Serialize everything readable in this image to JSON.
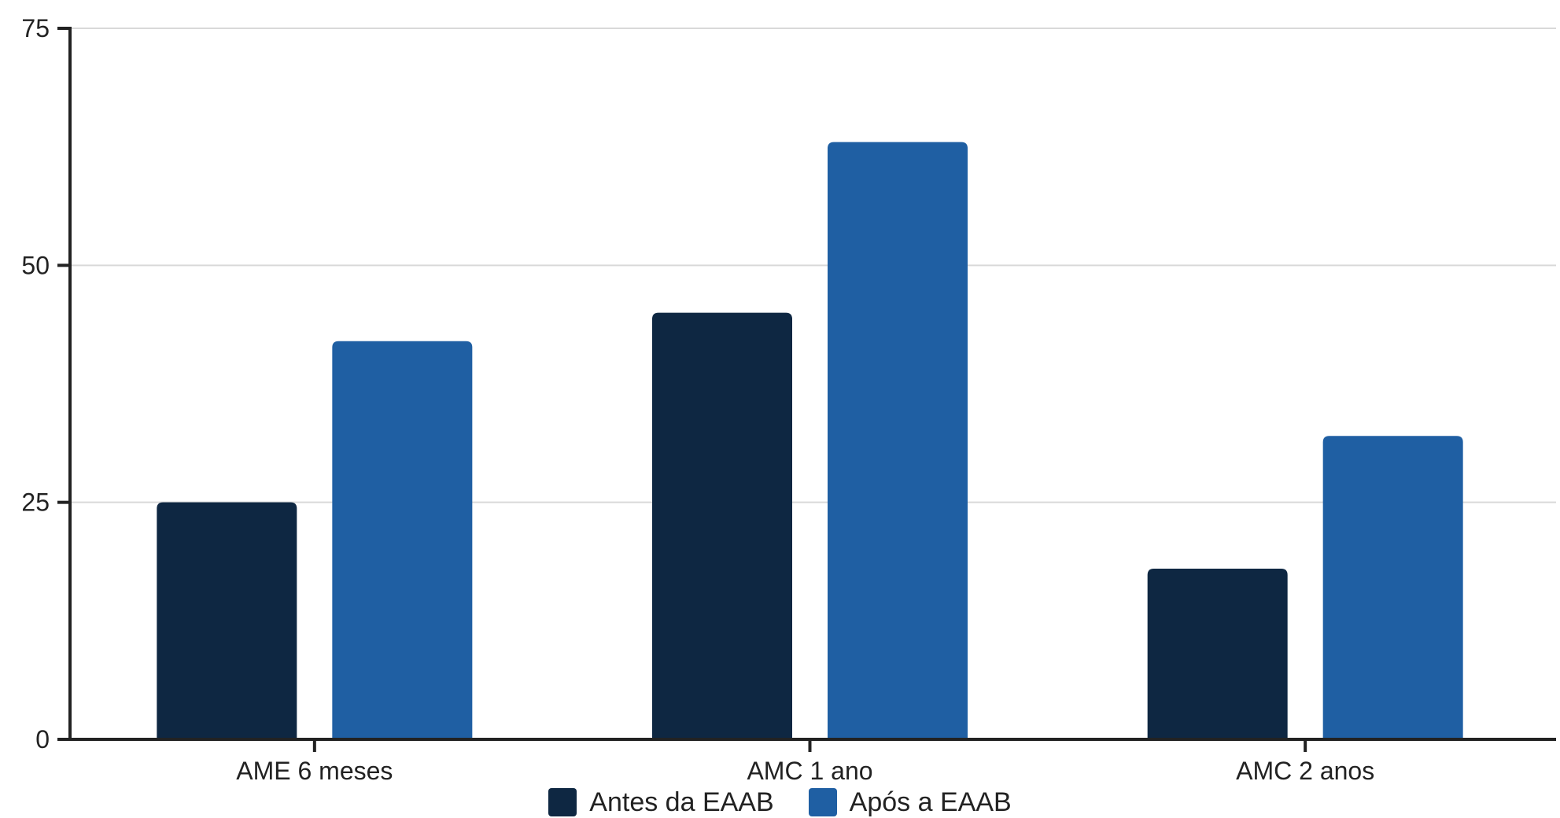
{
  "chart_data": {
    "type": "bar",
    "categories": [
      "AME 6 meses",
      "AMC 1 ano",
      "AMC 2 anos"
    ],
    "series": [
      {
        "name": "Antes da EAAB",
        "values": [
          25,
          45,
          18
        ],
        "color": "#0e2742"
      },
      {
        "name": "Após a EAAB",
        "values": [
          42,
          63,
          32
        ],
        "color": "#1f5fa3"
      }
    ],
    "yticks": [
      "0",
      "25",
      "50",
      "75"
    ],
    "ylim": [
      0,
      75
    ],
    "grid": true,
    "legend_position": "bottom-center",
    "title": "",
    "xlabel": "",
    "ylabel": ""
  }
}
